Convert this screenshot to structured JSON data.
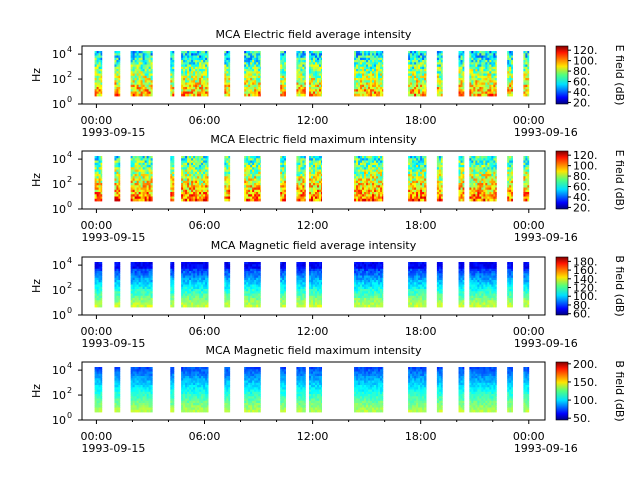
{
  "panels": [
    {
      "id": "e-avg",
      "title": "MCA  Electric field average intensity",
      "ylabel": "Hz",
      "cb_label": "E field (dB)",
      "cb_ticks": [
        "20.",
        "40.",
        "60.",
        "80.",
        "100.",
        "120."
      ],
      "cb_tick_values": [
        20,
        40,
        60,
        80,
        100,
        120
      ],
      "cb_range": [
        17,
        128
      ]
    },
    {
      "id": "e-max",
      "title": "MCA  Electric field maximum intensity",
      "ylabel": "Hz",
      "cb_label": "E field (dB)",
      "cb_ticks": [
        "20.",
        "40.",
        "60.",
        "80.",
        "100.",
        "120."
      ],
      "cb_tick_values": [
        20,
        40,
        60,
        80,
        100,
        120
      ],
      "cb_range": [
        17,
        128
      ]
    },
    {
      "id": "b-avg",
      "title": "MCA  Magnetic field average intensity",
      "ylabel": "Hz",
      "cb_label": "B field (dB)",
      "cb_ticks": [
        "60.",
        "80.",
        "100.",
        "120.",
        "140.",
        "160.",
        "180."
      ],
      "cb_tick_values": [
        60,
        80,
        100,
        120,
        140,
        160,
        180
      ],
      "cb_range": [
        57,
        190
      ]
    },
    {
      "id": "b-max",
      "title": "MCA  Magnetic field maximum intensity",
      "ylabel": "Hz",
      "cb_label": "B field (dB)",
      "cb_ticks": [
        "50.",
        "100.",
        "150.",
        "200."
      ],
      "cb_tick_values": [
        50,
        100,
        150,
        200
      ],
      "cb_range": [
        45,
        205
      ]
    }
  ],
  "x_ticks": [
    {
      "time": "00:00",
      "date": "1993-09-15"
    },
    {
      "time": "06:00",
      "date": ""
    },
    {
      "time": "12:00",
      "date": ""
    },
    {
      "time": "18:00",
      "date": ""
    },
    {
      "time": "00:00",
      "date": "1993-09-16"
    }
  ],
  "y_ticks": [
    "10",
    "10",
    "10"
  ],
  "y_tick_exponents": [
    "0",
    "2",
    "4"
  ],
  "chart_data": {
    "type": "heatmap",
    "xlabel": "",
    "ylabel": "Hz",
    "x_range_hours": [
      -0.8,
      24.9
    ],
    "y_scale": "log",
    "ylim": [
      1,
      30000
    ],
    "x_tick_hours": [
      0,
      6,
      12,
      18,
      24
    ],
    "colormap": "jet",
    "data_segments_hours": [
      [
        -0.1,
        0.3
      ],
      [
        1.0,
        1.3
      ],
      [
        1.9,
        3.1
      ],
      [
        4.1,
        4.3
      ],
      [
        4.7,
        6.2
      ],
      [
        7.1,
        7.4
      ],
      [
        8.2,
        9.1
      ],
      [
        10.2,
        10.5
      ],
      [
        11.1,
        11.6
      ],
      [
        11.8,
        12.5
      ],
      [
        14.3,
        15.9
      ],
      [
        17.3,
        18.3
      ],
      [
        18.9,
        19.2
      ],
      [
        20.1,
        20.4
      ],
      [
        20.7,
        22.2
      ],
      [
        22.8,
        23.1
      ],
      [
        23.7,
        24.0
      ]
    ]
  }
}
